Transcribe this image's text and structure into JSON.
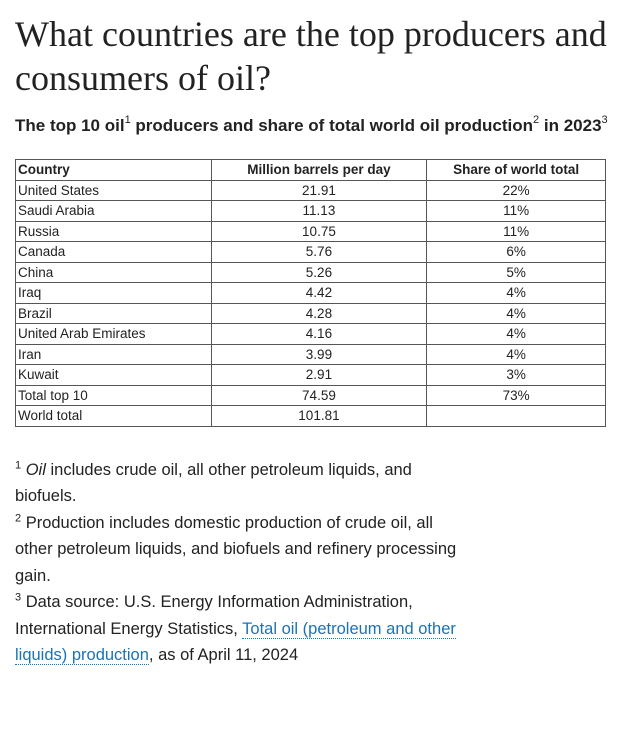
{
  "title": "What countries are the top producers and consumers of oil?",
  "subtitle": {
    "part1": "The top 10 oil",
    "sup1": "1",
    "part2": " producers and share of total world oil production",
    "sup2": "2",
    "part3": " in 2023",
    "sup3": "3"
  },
  "table": {
    "headers": [
      "Country",
      "Million barrels per day",
      "Share of world total"
    ],
    "rows": [
      [
        "United States",
        "21.91",
        "22%"
      ],
      [
        "Saudi Arabia",
        "11.13",
        "11%"
      ],
      [
        "Russia",
        "10.75",
        "11%"
      ],
      [
        "Canada",
        "5.76",
        "6%"
      ],
      [
        "China",
        "5.26",
        "5%"
      ],
      [
        "Iraq",
        "4.42",
        "4%"
      ],
      [
        "Brazil",
        "4.28",
        "4%"
      ],
      [
        "United Arab Emirates",
        "4.16",
        "4%"
      ],
      [
        "Iran",
        "3.99",
        "4%"
      ],
      [
        "Kuwait",
        "2.91",
        "3%"
      ],
      [
        "Total top 10",
        "74.59",
        "73%"
      ],
      [
        "World total",
        "101.81",
        ""
      ]
    ]
  },
  "footnotes": {
    "fn1": {
      "mark": "1",
      "em": "Oil",
      "text": " includes crude oil, all other petroleum liquids, and biofuels."
    },
    "fn2": {
      "mark": "2",
      "text": " Production includes domestic production of crude oil, all other petroleum liquids, and biofuels and refinery processing gain."
    },
    "fn3": {
      "mark": "3",
      "text_before": " Data source: U.S. Energy Information Administration, International Energy Statistics, ",
      "link": "Total oil (petroleum and other liquids) production",
      "text_after": ", as of April 11, 2024"
    }
  },
  "colors": {
    "text": "#222222",
    "link": "#1a73b5",
    "table_border": "#555555"
  }
}
